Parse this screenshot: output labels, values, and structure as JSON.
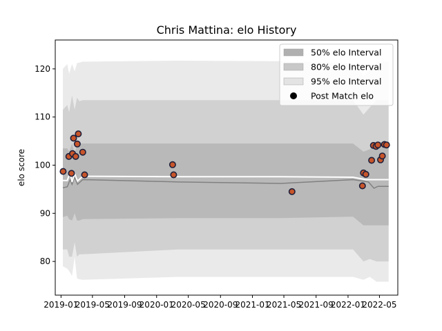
{
  "chart_data": {
    "type": "area",
    "title": "Chris Mattina: elo History",
    "xlabel": "",
    "ylabel": "elo score",
    "xlim": [
      "2018-12-10",
      "2022-07-10"
    ],
    "ylim": [
      73,
      126
    ],
    "grid": false,
    "legend_position": "top-right",
    "x_ticks": [
      "2019-01",
      "2019-05",
      "2019-09",
      "2020-01",
      "2020-05",
      "2020-09",
      "2021-01",
      "2021-05",
      "2021-09",
      "2022-01",
      "2022-05"
    ],
    "y_ticks": [
      80,
      90,
      100,
      110,
      120
    ],
    "legend": [
      {
        "label": "50% elo Interval",
        "kind": "band",
        "color": "#b0b0b0"
      },
      {
        "label": "80% elo Interval",
        "kind": "band",
        "color": "#c8c8c8"
      },
      {
        "label": "95% elo Interval",
        "kind": "band",
        "color": "#e3e3e3"
      },
      {
        "label": "Post Match elo",
        "kind": "marker",
        "color": "#000000"
      }
    ],
    "band_x": [
      "2019-01-08",
      "2019-01-25",
      "2019-02-01",
      "2019-02-12",
      "2019-02-22",
      "2019-03-03",
      "2019-03-12",
      "2019-03-25",
      "2020-03-25",
      "2021-04-20",
      "2022-01-20",
      "2022-03-01",
      "2022-03-25",
      "2022-04-20",
      "2022-06-05"
    ],
    "series": [
      {
        "name": "95% elo Interval",
        "upper": [
          120.0,
          121.0,
          119.0,
          121.0,
          119.5,
          121.2,
          121.3,
          121.5,
          121.7,
          121.6,
          121.2,
          118.5,
          119.8,
          121.5,
          121.5
        ],
        "lower": [
          79.0,
          78.5,
          78.0,
          77.0,
          81.0,
          76.5,
          76.3,
          76.2,
          76.8,
          76.8,
          76.8,
          76.2,
          76.8,
          75.8,
          75.8
        ]
      },
      {
        "name": "80% elo Interval",
        "upper": [
          111.5,
          112.5,
          111.0,
          114.5,
          111.5,
          114.0,
          113.3,
          113.5,
          113.5,
          113.5,
          113.5,
          110.5,
          112.0,
          113.5,
          113.5
        ],
        "lower": [
          82.5,
          82.5,
          81.0,
          81.0,
          84.0,
          81.0,
          81.5,
          81.5,
          82.5,
          82.5,
          82.5,
          80.0,
          80.5,
          80.0,
          80.0
        ]
      },
      {
        "name": "50% elo Interval",
        "upper": [
          103.5,
          103.5,
          102.8,
          104.5,
          102.5,
          104.2,
          104.5,
          104.5,
          104.5,
          104.5,
          104.5,
          102.8,
          103.3,
          104.8,
          104.8
        ],
        "lower": [
          89.2,
          89.5,
          88.8,
          88.5,
          90.0,
          88.5,
          88.5,
          88.8,
          89.0,
          89.0,
          89.3,
          87.5,
          87.5,
          87.5,
          87.5
        ]
      }
    ],
    "mean_line": {
      "color": "#808080",
      "x": [
        "2019-01-08",
        "2019-01-25",
        "2019-02-05",
        "2019-02-12",
        "2019-02-22",
        "2019-03-05",
        "2019-03-25",
        "2020-03-25",
        "2021-04-20",
        "2022-01-20",
        "2022-03-20",
        "2022-04-10",
        "2022-04-25",
        "2022-06-05"
      ],
      "y": [
        95.3,
        95.5,
        97.0,
        96.0,
        97.5,
        96.0,
        97.0,
        96.5,
        96.2,
        97.0,
        96.5,
        95.2,
        95.6,
        95.6
      ]
    },
    "median_line": {
      "color": "#ffffff",
      "x": [
        "2019-01-08",
        "2019-01-25",
        "2019-02-05",
        "2019-02-12",
        "2019-02-22",
        "2019-03-05",
        "2019-03-25",
        "2020-03-25",
        "2021-04-20",
        "2022-01-20",
        "2022-03-10",
        "2022-06-05"
      ],
      "y": [
        96.8,
        96.8,
        98.5,
        96.5,
        98.2,
        96.7,
        97.7,
        97.6,
        97.6,
        97.5,
        97.0,
        97.0
      ]
    },
    "points": {
      "name": "Post Match elo",
      "fill": "#c8552a",
      "edge": "#1f1f3a",
      "x": [
        "2019-01-09",
        "2019-01-31",
        "2019-02-10",
        "2019-02-14",
        "2019-02-18",
        "2019-02-26",
        "2019-03-04",
        "2019-03-08",
        "2019-03-25",
        "2019-04-01",
        "2020-03-02",
        "2020-03-06",
        "2021-06-01",
        "2022-02-25",
        "2022-03-01",
        "2022-03-10",
        "2022-04-01",
        "2022-04-08",
        "2022-04-18",
        "2022-04-25",
        "2022-05-05",
        "2022-05-12",
        "2022-05-20",
        "2022-05-28"
      ],
      "y": [
        98.7,
        101.8,
        98.3,
        102.4,
        105.6,
        101.8,
        104.4,
        106.5,
        102.7,
        98.0,
        100.1,
        98.0,
        94.5,
        95.7,
        98.4,
        98.1,
        101.0,
        104.1,
        103.9,
        104.2,
        101.1,
        101.9,
        104.3,
        104.2
      ]
    }
  }
}
